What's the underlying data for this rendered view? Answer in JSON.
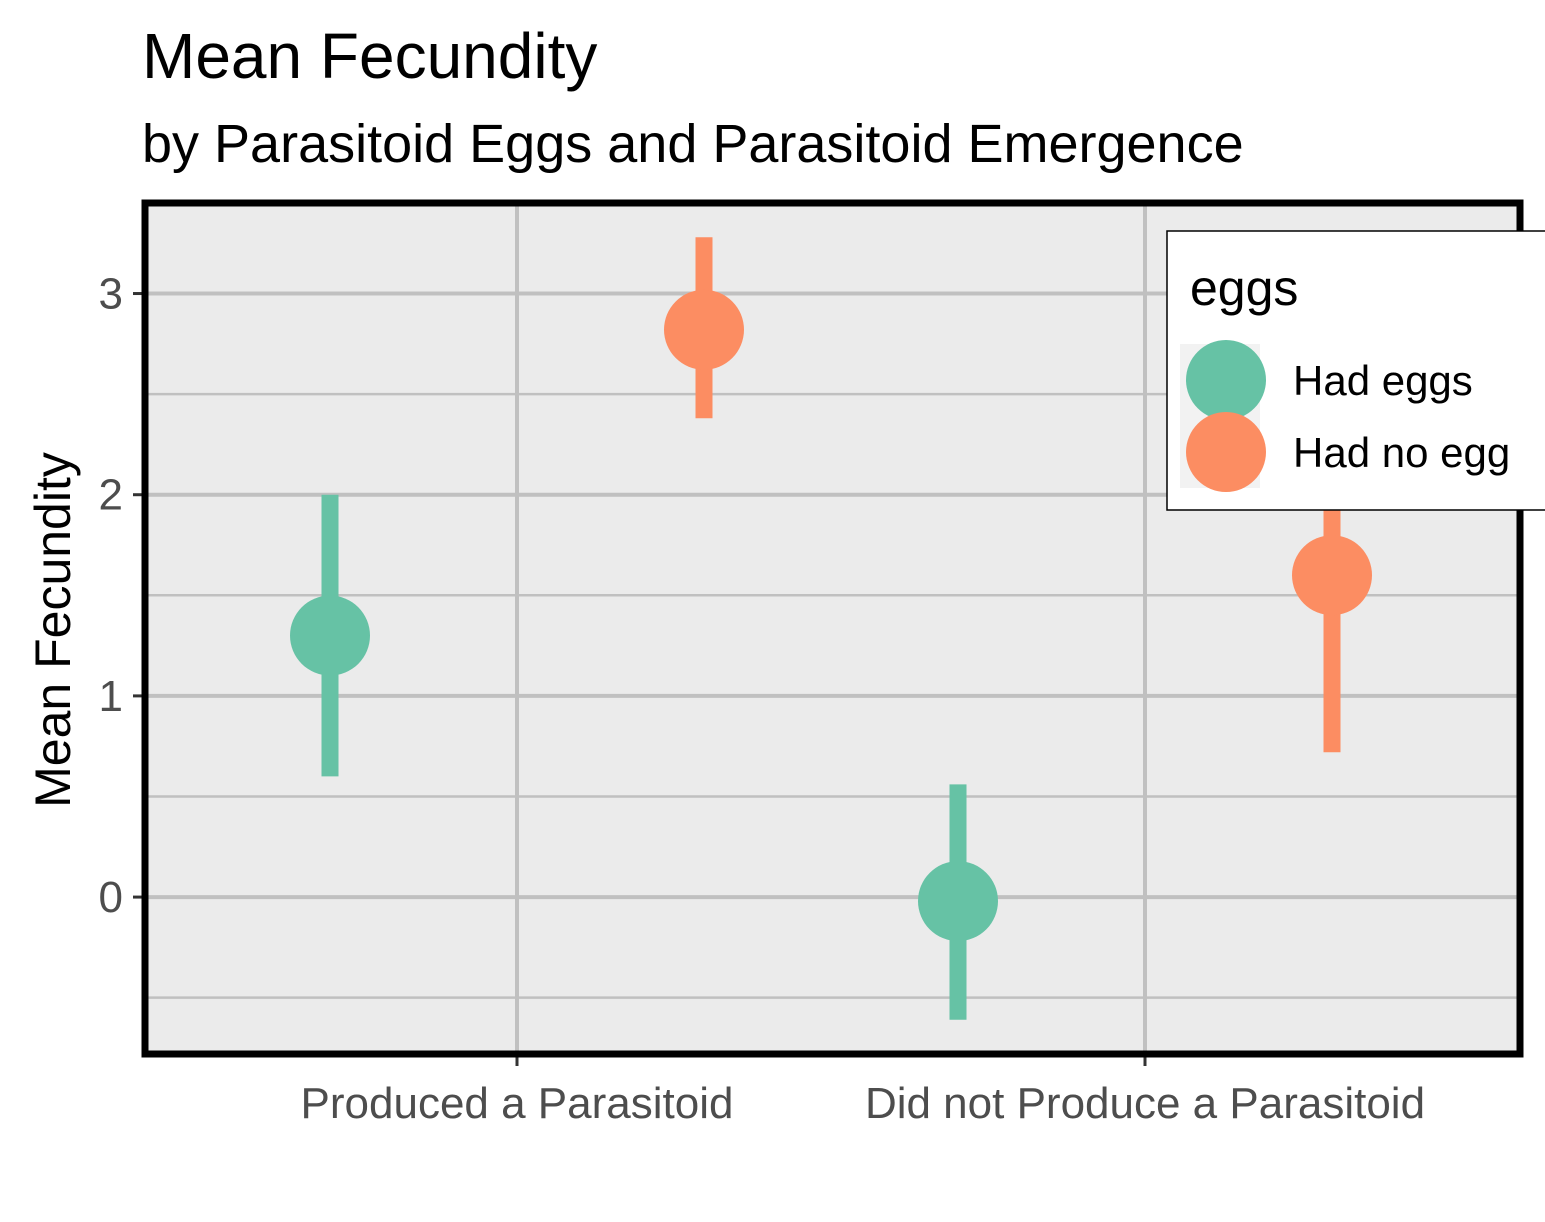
{
  "chart_data": {
    "type": "scatter",
    "title": "Mean Fecundity",
    "subtitle": "by Parasitoid Eggs and Parasitoid Emergence",
    "xlabel": "",
    "ylabel": "Mean Fecundity",
    "categories": [
      "Produced a Parasitoid",
      "Did not Produce a Parasitoid"
    ],
    "ylim": [
      -0.78,
      3.45
    ],
    "y_ticks": [
      0,
      1,
      2,
      3
    ],
    "y_tick_labels": [
      "0",
      "1",
      "2",
      "3"
    ],
    "grid": true,
    "legend": {
      "title": "eggs",
      "position": "top-right",
      "entries": [
        "Had eggs",
        "Had no egg"
      ]
    },
    "series": [
      {
        "name": "Had eggs",
        "color": "#66c2a5",
        "points": [
          {
            "category": "Produced a Parasitoid",
            "mean": 1.3,
            "lower": 0.6,
            "upper": 2.0
          },
          {
            "category": "Did not Produce a Parasitoid",
            "mean": -0.02,
            "lower": -0.61,
            "upper": 0.56
          }
        ]
      },
      {
        "name": "Had no egg",
        "color": "#fc8d62",
        "points": [
          {
            "category": "Produced a Parasitoid",
            "mean": 2.82,
            "lower": 2.38,
            "upper": 3.28
          },
          {
            "category": "Did not Produce a Parasitoid",
            "mean": 1.6,
            "lower": 0.72,
            "upper": 2.45
          }
        ]
      }
    ],
    "colors": {
      "panel_background": "#ebebeb",
      "grid": "#c0c0c0",
      "panel_border": "#000000"
    }
  }
}
